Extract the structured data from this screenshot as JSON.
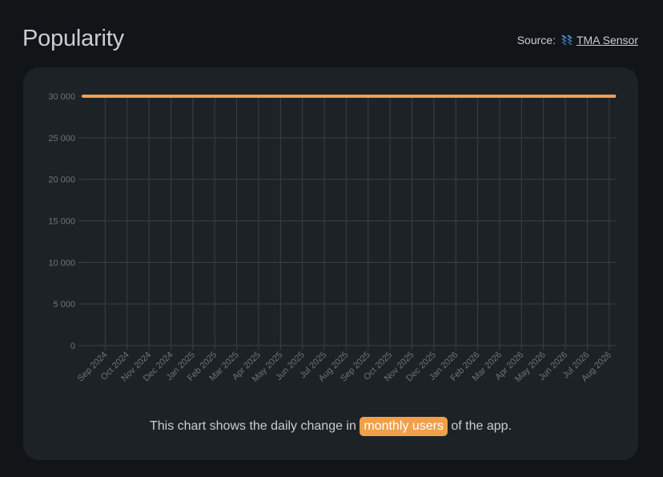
{
  "header": {
    "title": "Popularity",
    "source_prefix": "Source:",
    "source_link": "TMA Sensor",
    "source_icon": "tma-sensor-logo-icon"
  },
  "caption": {
    "before": "This chart shows the daily change in",
    "highlight": "monthly users",
    "after": "of the app."
  },
  "colors": {
    "line": "#f0a04b",
    "highlight_bg": "#f0a04b",
    "grid": "#3a4046",
    "card_bg": "#1d2227",
    "page_bg": "#111518",
    "logo": "#4a90d9"
  },
  "chart_data": {
    "type": "line",
    "title": "",
    "xlabel": "",
    "ylabel": "",
    "ylim": [
      0,
      30000
    ],
    "y_ticks": [
      0,
      5000,
      10000,
      15000,
      20000,
      25000,
      30000
    ],
    "y_tick_labels": [
      "0",
      "5 000",
      "10 000",
      "15 000",
      "20 000",
      "25 000",
      "30 000"
    ],
    "x_tick_labels": [
      "Sep 2024",
      "Oct 2024",
      "Nov 2024",
      "Dec 2024",
      "Jan 2025",
      "Feb 2025",
      "Mar 2025",
      "Apr 2025",
      "May 2025",
      "Jun 2025",
      "Jul 2025",
      "Aug 2025",
      "Sep 2025",
      "Oct 2025",
      "Nov 2025",
      "Dec 2025",
      "Jan 2026",
      "Feb 2026",
      "Mar 2026",
      "Apr 2026",
      "May 2026",
      "Jun 2026",
      "Jul 2026",
      "Aug 2026"
    ],
    "x_range": [
      "Aug 2024",
      "Aug 2026"
    ],
    "grid": true,
    "legend": "none",
    "series": [
      {
        "x": [
          "Aug 2024",
          "Aug 2026"
        ],
        "values": [
          30000,
          30000
        ]
      }
    ]
  }
}
